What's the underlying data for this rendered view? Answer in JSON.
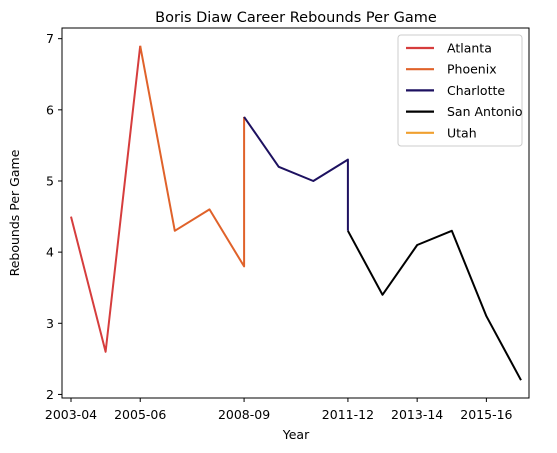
{
  "chart_data": {
    "type": "line",
    "title": "Boris Diaw Career Rebounds Per Game",
    "xlabel": "Year",
    "ylabel": "Rebounds Per Game",
    "x_categories": [
      "2003-04",
      "2004-05",
      "2005-06",
      "2006-07",
      "2007-08",
      "2008-09",
      "2009-10",
      "2010-11",
      "2011-12",
      "2012-13",
      "2013-14",
      "2014-15",
      "2015-16",
      "2016-17"
    ],
    "x_tick_labels": [
      "2003-04",
      "2005-06",
      "2008-09",
      "2011-12",
      "2013-14",
      "2015-16"
    ],
    "ylim": [
      2,
      7
    ],
    "y_ticks": [
      2,
      3,
      4,
      5,
      6,
      7
    ],
    "grid": false,
    "legend_position": "top-right",
    "series": [
      {
        "name": "Atlanta",
        "color": "#d63d3d",
        "points": [
          [
            "2003-04",
            4.5
          ],
          [
            "2004-05",
            2.6
          ],
          [
            "2005-06",
            6.9
          ]
        ]
      },
      {
        "name": "Phoenix",
        "color": "#e0622a",
        "points": [
          [
            "2005-06",
            6.9
          ],
          [
            "2006-07",
            4.3
          ],
          [
            "2007-08",
            4.6
          ],
          [
            "2008-09",
            3.8
          ],
          [
            "2008-09",
            5.9
          ]
        ]
      },
      {
        "name": "Charlotte",
        "color": "#1d1160",
        "points": [
          [
            "2008-09",
            5.9
          ],
          [
            "2009-10",
            5.2
          ],
          [
            "2010-11",
            5.0
          ],
          [
            "2011-12",
            5.3
          ],
          [
            "2011-12",
            4.3
          ]
        ]
      },
      {
        "name": "San Antonio",
        "color": "#000000",
        "points": [
          [
            "2011-12",
            4.3
          ],
          [
            "2012-13",
            3.4
          ],
          [
            "2013-14",
            4.1
          ],
          [
            "2014-15",
            4.3
          ],
          [
            "2015-16",
            3.1
          ],
          [
            "2016-17",
            2.2
          ]
        ]
      },
      {
        "name": "Utah",
        "color": "#f0a030",
        "points": []
      }
    ]
  }
}
